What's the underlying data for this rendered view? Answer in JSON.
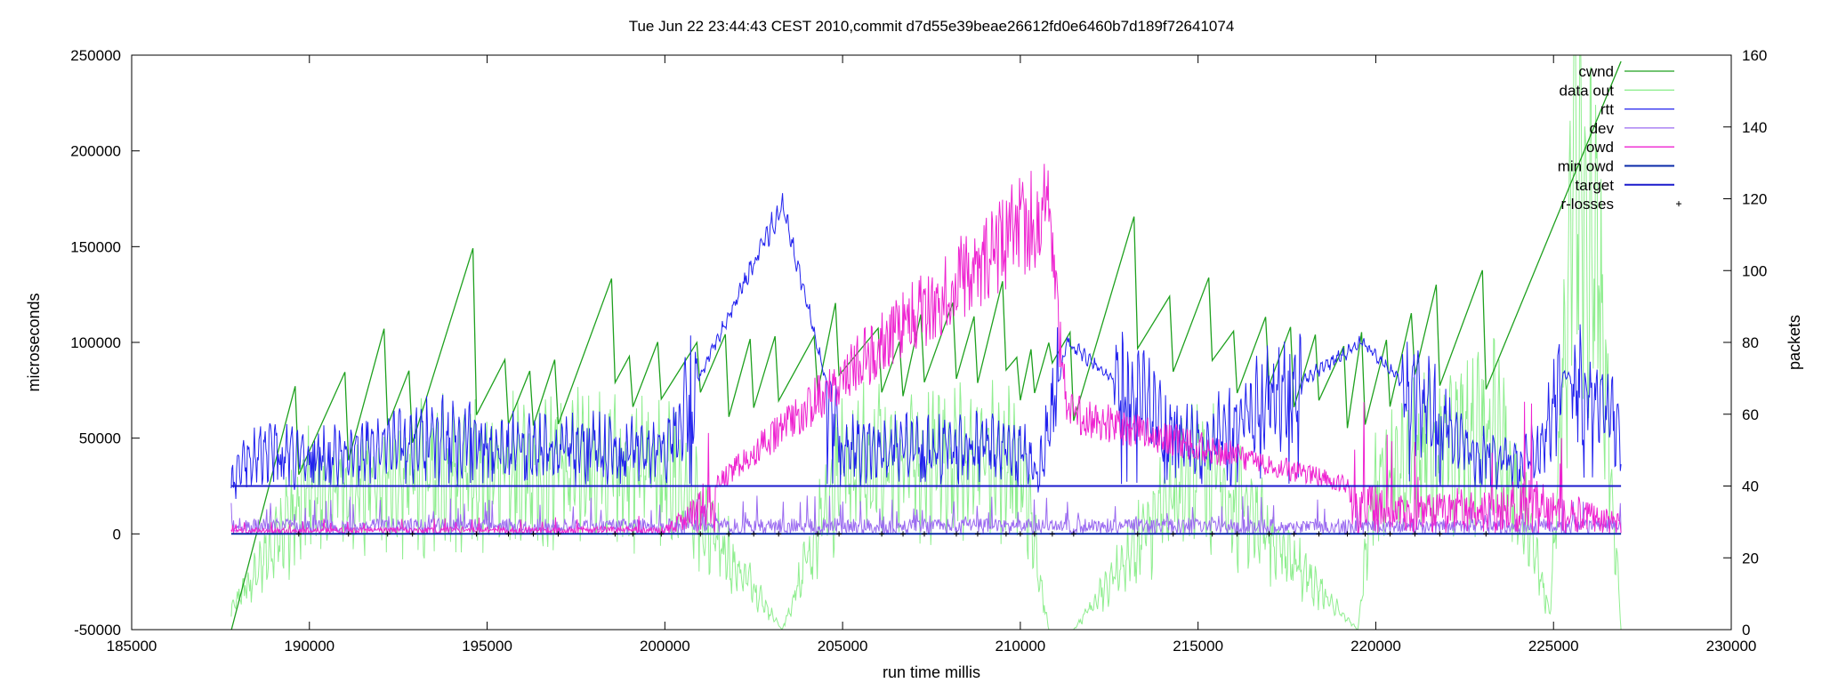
{
  "chart_data": {
    "type": "line",
    "title": "Tue Jun 22 23:44:43 CEST 2010,commit d7d55e39beae26612fd0e6460b7d189f72641074",
    "xlabel": "run time millis",
    "ylabel": "microseconds",
    "y2label": "packets",
    "xlim": [
      185000,
      230000
    ],
    "ylim": [
      -50000,
      250000
    ],
    "y2lim": [
      0,
      160
    ],
    "xticks": [
      "185000",
      "190000",
      "195000",
      "200000",
      "205000",
      "210000",
      "215000",
      "220000",
      "225000",
      "230000"
    ],
    "yticks": [
      "-50000",
      "0",
      "50000",
      "100000",
      "150000",
      "200000",
      "250000"
    ],
    "y2ticks": [
      "0",
      "20",
      "40",
      "60",
      "80",
      "100",
      "120",
      "140",
      "160"
    ],
    "grid": false,
    "legend_position": "top-right",
    "colors": {
      "cwnd": "#1fa11f",
      "data_out": "#90ee90",
      "rtt": "#2222ee",
      "dev": "#9a6af0",
      "owd": "#ee22d0",
      "min_owd": "#0a2aa8",
      "target": "#1a1acc",
      "r_losses": "#000000"
    },
    "series": [
      {
        "name": "cwnd",
        "axis": "y2",
        "style": "sawtooth",
        "x": [
          187800,
          189600,
          189700,
          191000,
          191100,
          192100,
          192200,
          192800,
          192900,
          194600,
          194700,
          195500,
          195600,
          196200,
          196300,
          196900,
          197000,
          198500,
          198600,
          199000,
          199100,
          199800,
          199900,
          200900,
          201000,
          201700,
          201800,
          202400,
          202500,
          203100,
          203200,
          204200,
          204300,
          204800,
          204900,
          206000,
          206100,
          206600,
          206700,
          207200,
          207300,
          208100,
          208200,
          208700,
          208800,
          209500,
          209600,
          209900,
          210000,
          210300,
          210400,
          210800,
          210900,
          211400,
          211500,
          213200,
          213300,
          214200,
          214300,
          215300,
          215400,
          216000,
          216100,
          216900,
          217000,
          217600,
          217700,
          218300,
          218400,
          219100,
          219200,
          219600,
          219700,
          220300,
          220400,
          221000,
          221100,
          221700,
          221800,
          223000,
          223100,
          226900
        ],
        "values": [
          0,
          68,
          43,
          72,
          47,
          84,
          57,
          72,
          52,
          106,
          60,
          75,
          57,
          72,
          57,
          75,
          57,
          98,
          69,
          76,
          62,
          80,
          64,
          80,
          66,
          82,
          59,
          81,
          62,
          82,
          64,
          82,
          66,
          91,
          71,
          84,
          66,
          80,
          65,
          88,
          69,
          91,
          70,
          87,
          69,
          97,
          72,
          76,
          64,
          78,
          66,
          80,
          74,
          83,
          58,
          115,
          78,
          93,
          72,
          98,
          75,
          83,
          66,
          87,
          68,
          84,
          62,
          82,
          64,
          79,
          56,
          83,
          57,
          81,
          62,
          88,
          71,
          96,
          68,
          100,
          67,
          158
        ]
      },
      {
        "name": "data out",
        "axis": "y2",
        "style": "noisy-fill",
        "x": [
          187800,
          190000,
          195000,
          200000,
          203300,
          205000,
          210000,
          210800,
          211500,
          215000,
          219500,
          220000,
          223500,
          224900,
          225600,
          226200,
          226900
        ],
        "values": [
          5,
          38,
          44,
          45,
          0,
          46,
          46,
          0,
          0,
          46,
          0,
          45,
          55,
          5,
          125,
          108,
          0
        ]
      },
      {
        "name": "rtt",
        "axis": "y1",
        "style": "noisy",
        "x": [
          187800,
          188500,
          190000,
          194000,
          195000,
          200000,
          203300,
          205000,
          210000,
          210500,
          211300,
          215000,
          219600,
          223000,
          224500,
          225300,
          226900
        ],
        "values": [
          25000,
          45000,
          40000,
          52000,
          45000,
          45000,
          172000,
          45000,
          45000,
          30000,
          100000,
          45000,
          100000,
          40000,
          40000,
          84000,
          55000
        ]
      },
      {
        "name": "dev",
        "axis": "y1",
        "style": "noisy-low",
        "x": [
          187800,
          226900
        ],
        "values": [
          8000,
          8000
        ]
      },
      {
        "name": "owd",
        "axis": "y1",
        "style": "noisy-low",
        "x": [
          187800,
          200000,
          210800,
          211300,
          221000,
          224500,
          226900
        ],
        "values": [
          3000,
          4000,
          203000,
          75000,
          20000,
          29000,
          10000
        ]
      },
      {
        "name": "min owd",
        "axis": "y1",
        "style": "flat",
        "x": [
          187800,
          226900
        ],
        "values": [
          0,
          0
        ]
      },
      {
        "name": "target",
        "axis": "y1",
        "style": "flat",
        "x": [
          187800,
          226900
        ],
        "values": [
          25000,
          25000
        ]
      },
      {
        "name": "r-losses",
        "axis": "y1",
        "style": "points",
        "x": [
          189700,
          191100,
          192200,
          192900,
          194700,
          195600,
          196300,
          197000,
          198600,
          199100,
          199900,
          201000,
          201800,
          202500,
          203200,
          204300,
          204900,
          206100,
          206700,
          207300,
          208200,
          208800,
          209600,
          210000,
          210400,
          210900,
          211500,
          213300,
          214300,
          215400,
          216100,
          217000,
          217700,
          218400,
          219200,
          219700,
          220400,
          221100,
          221800,
          223100
        ],
        "values": [
          0,
          0,
          0,
          0,
          0,
          0,
          0,
          0,
          0,
          0,
          0,
          0,
          0,
          0,
          0,
          0,
          0,
          0,
          0,
          0,
          0,
          0,
          0,
          0,
          0,
          0,
          0,
          0,
          0,
          0,
          0,
          0,
          0,
          0,
          0,
          0,
          0,
          0,
          0,
          0
        ]
      }
    ]
  }
}
